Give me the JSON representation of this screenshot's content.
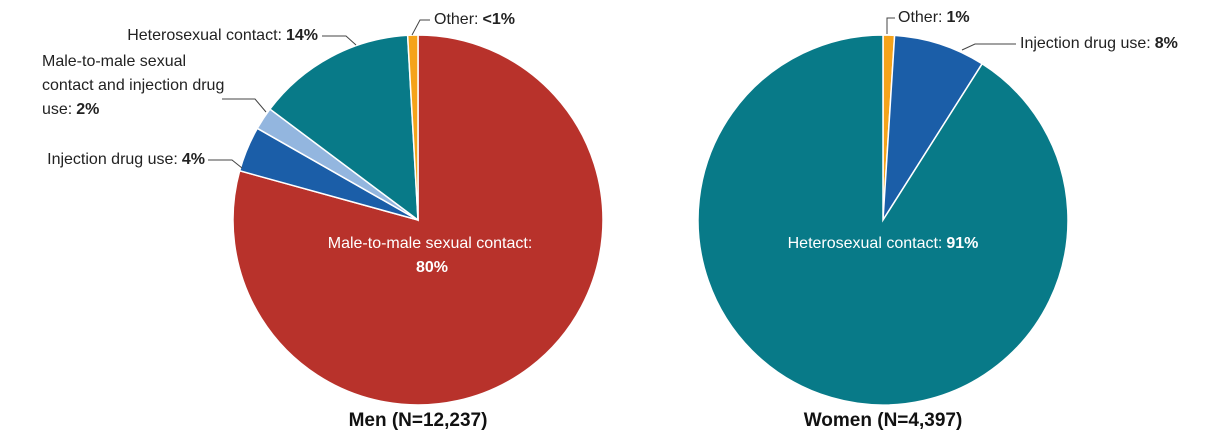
{
  "chart_data": [
    {
      "type": "pie",
      "title": "Men (N=12,237)",
      "categories": [
        "Male-to-male sexual contact:",
        "Injection drug use:",
        "Male-to-male sexual contact and injection drug use:",
        "Heterosexual contact:",
        "Other:"
      ],
      "values": [
        80,
        4,
        2,
        14,
        0.9
      ],
      "value_labels": [
        "80%",
        "4%",
        "2%",
        "14%",
        "<1%"
      ],
      "colors": [
        "#b8322b",
        "#1b5ea8",
        "#93b6df",
        "#087a88",
        "#f5a31a"
      ]
    },
    {
      "type": "pie",
      "title": "Women (N=4,397)",
      "categories": [
        "Other:",
        "Injection drug use:",
        "Heterosexual contact:"
      ],
      "values": [
        1,
        8,
        91
      ],
      "value_labels": [
        "1%",
        "8%",
        "91%"
      ],
      "colors": [
        "#f5a31a",
        "#1b5ea8",
        "#087a88"
      ]
    }
  ]
}
